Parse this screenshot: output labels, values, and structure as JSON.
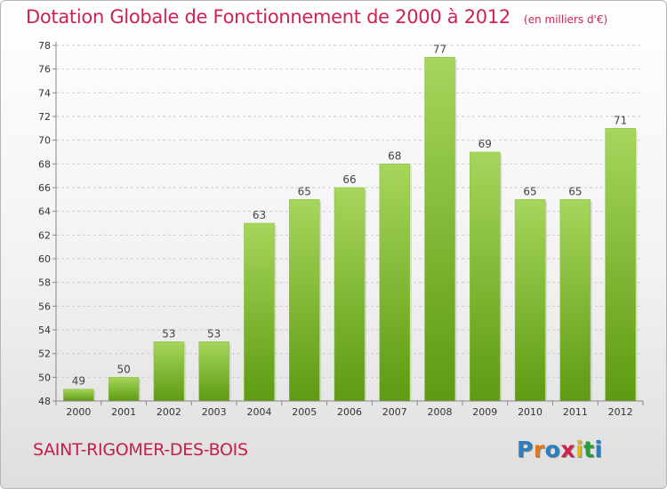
{
  "header": {
    "title": "Dotation Globale de Fonctionnement de 2000 à 2012",
    "unit": "(en milliers d'€)"
  },
  "footer": {
    "commune": "SAINT-RIGOMER-DES-BOIS",
    "logo_letters": [
      "P",
      "r",
      "o",
      "x",
      "i",
      "t",
      "i"
    ],
    "logo_colors": [
      "#2a7fc0",
      "#e07a1a",
      "#2a7fc0",
      "#d0224e",
      "#e0b81a",
      "#2a9a3a",
      "#2a7fc0"
    ]
  },
  "colors": {
    "bar_top": "#a6d65c",
    "bar_bottom": "#5e9a12",
    "grid": "#cccccc",
    "axis": "#888888"
  },
  "chart_data": {
    "type": "bar",
    "title": "Dotation Globale de Fonctionnement de 2000 à 2012",
    "xlabel": "",
    "ylabel": "",
    "categories": [
      "2000",
      "2001",
      "2002",
      "2003",
      "2004",
      "2005",
      "2006",
      "2007",
      "2008",
      "2009",
      "2010",
      "2011",
      "2012"
    ],
    "values": [
      49,
      50,
      53,
      53,
      63,
      65,
      66,
      68,
      77,
      69,
      65,
      65,
      71
    ],
    "ylim": [
      48,
      78
    ],
    "yticks": [
      48,
      50,
      52,
      54,
      56,
      58,
      60,
      62,
      64,
      66,
      68,
      70,
      72,
      74,
      76,
      78
    ],
    "grid": true
  }
}
